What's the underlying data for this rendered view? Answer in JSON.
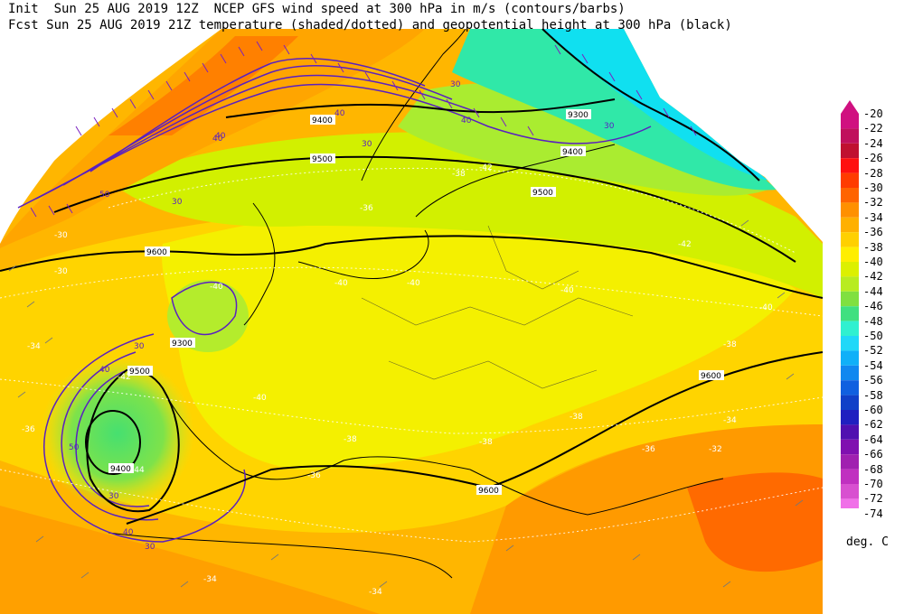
{
  "header": {
    "line1_prefix": "Init  Sun 25 AUG 2019 12Z",
    "line1_title": "NCEP GFS wind speed at 300 hPa in m/s (contours/barbs)",
    "line2_prefix": "Fcst Sun 25 AUG 2019 21Z",
    "line2_title": "temperature (shaded/dotted) and geopotential height at 300 hPa (black)"
  },
  "legend": {
    "units": "deg. C",
    "levels": [
      "-20",
      "-22",
      "-24",
      "-26",
      "-28",
      "-30",
      "-32",
      "-34",
      "-36",
      "-38",
      "-40",
      "-42",
      "-44",
      "-46",
      "-48",
      "-50",
      "-52",
      "-54",
      "-56",
      "-58",
      "-60",
      "-62",
      "-64",
      "-66",
      "-68",
      "-70",
      "-72",
      "-74"
    ],
    "colors": [
      "#d01080",
      "#c0105c",
      "#c01030",
      "#ff1010",
      "#ff3c00",
      "#ff6400",
      "#ff9000",
      "#ffb000",
      "#ffd000",
      "#ffee00",
      "#dcf000",
      "#b8ec20",
      "#80e040",
      "#40e080",
      "#30f0d0",
      "#20d8f8",
      "#10b0f8",
      "#1088f0",
      "#1060e0",
      "#1040c8",
      "#2020c0",
      "#5010b0",
      "#8010b0",
      "#a020b0",
      "#c030c0",
      "#d850d0",
      "#f070e8",
      "#ff9cf0"
    ]
  },
  "map_labels": {
    "height_contours": [
      "9300",
      "9400",
      "9500",
      "9600",
      "9400",
      "9500",
      "9600",
      "9300",
      "9400",
      "9500",
      "9600"
    ],
    "temperature_labels": [
      "-30",
      "-34",
      "-36",
      "-38",
      "-40",
      "-40",
      "-40",
      "-42",
      "-42",
      "-40",
      "-38",
      "-38",
      "-36",
      "-34",
      "-34",
      "-32",
      "-30",
      "-36",
      "-40",
      "-42",
      "-44",
      "-40",
      "-38",
      "-34",
      "-36",
      "-38"
    ],
    "wind_labels": [
      "30",
      "40",
      "50",
      "30",
      "40",
      "30",
      "40",
      "40",
      "30",
      "30",
      "40",
      "50",
      "30",
      "40",
      "30"
    ]
  }
}
